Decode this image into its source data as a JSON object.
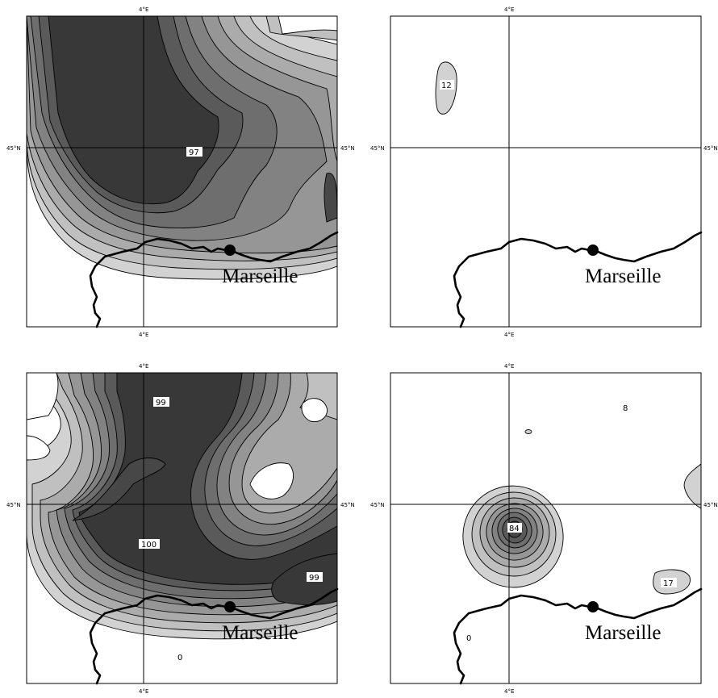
{
  "panels": [
    {
      "id": "top-left",
      "lon_label_top": "4°E",
      "lon_label_bottom": "4°E",
      "lat_label_left": "45°N",
      "lat_label_right": "45°N",
      "city": "Marseille",
      "contour_labels": [
        "97"
      ]
    },
    {
      "id": "top-right",
      "lon_label_top": "4°E",
      "lon_label_bottom": "4°E",
      "lat_label_left": "45°N",
      "lat_label_right": "45°N",
      "city": "Marseille",
      "contour_labels": [
        "12"
      ]
    },
    {
      "id": "bottom-left",
      "lon_label_top": "4°E",
      "lon_label_bottom": "4°E",
      "lat_label_left": "45°N",
      "lat_label_right": "45°N",
      "city": "Marseille",
      "contour_labels": [
        "99",
        "100",
        "99",
        "0"
      ]
    },
    {
      "id": "bottom-right",
      "lon_label_top": "4°E",
      "lon_label_bottom": "4°E",
      "lat_label_left": "45°N",
      "lat_label_right": "45°N",
      "city": "Marseille",
      "contour_labels": [
        "8",
        "84",
        "17",
        "0"
      ]
    }
  ],
  "colors": {
    "lightest_fill": "#d2d2d2",
    "darkest_fill": "#383838",
    "coastline": "#000000"
  }
}
